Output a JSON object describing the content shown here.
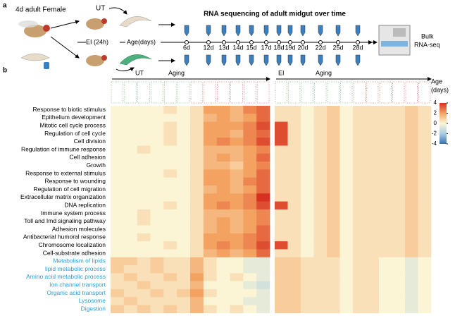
{
  "panel_a": {
    "label": "a",
    "start": "4d adult Female",
    "ut": "UT",
    "ei": "EI (24h)",
    "age": "Age(days)",
    "title": "RNA sequencing of adult midgut over time",
    "timepoints": [
      "6d",
      "12d",
      "13d",
      "14d",
      "15d",
      "17d",
      "18d",
      "19d",
      "20d",
      "22d",
      "25d",
      "28d"
    ],
    "bulk": [
      "Bulk",
      "RNA-seq"
    ]
  },
  "panel_b": {
    "label": "b",
    "age_label": [
      "Age",
      "(days)"
    ],
    "terms": [
      "Response to biotic stimulus",
      "Epithelium development",
      "Mitotic cell cycle process",
      "Regulation of cell cycle",
      "Cell division",
      "Regulation of immune response",
      "Cell adhesion",
      "Growth",
      "Response to external stimulus",
      "Response to wounding",
      "Regulation of cell migration",
      "Extracellular matrix organization",
      "DNA replication",
      "Immune system process",
      "Toll and Imd signaling pathway",
      "Adhesion molecules",
      "Antibacterial humoral response",
      "Chromosome localization",
      "Cell-substrate adhesion"
    ],
    "metabolic_terms": [
      "Metabolism of lipids",
      "lipid metabolic process",
      "Amino acid metabolic process",
      "Ion channel transport",
      "Organic acid transport",
      "Lysosome",
      "Digestion"
    ],
    "colorbar_ticks": [
      4,
      2,
      0,
      -2,
      -4
    ],
    "heatmaps": [
      {
        "name": "UT",
        "arrow": "Aging",
        "values": [
          [
            0,
            0,
            0,
            0,
            0.5,
            0,
            0.5,
            2,
            2,
            1.5,
            2.5,
            3
          ],
          [
            0,
            0,
            0,
            0,
            0,
            0,
            0.5,
            1.5,
            2,
            1.5,
            2,
            3
          ],
          [
            0,
            0,
            0,
            0,
            0.5,
            0,
            0.5,
            2,
            2,
            2,
            2.5,
            3.5
          ],
          [
            0,
            0,
            0,
            0,
            0.5,
            0,
            0.5,
            2,
            2,
            1.5,
            2.5,
            3
          ],
          [
            0,
            0,
            0,
            0,
            0.5,
            0,
            0.5,
            2,
            2.5,
            2,
            2.5,
            3.5
          ],
          [
            0,
            0,
            0.5,
            0,
            0,
            0,
            0.5,
            1.5,
            1.5,
            1.5,
            2,
            2.5
          ],
          [
            0,
            0,
            0,
            0,
            0,
            0,
            0.5,
            1.5,
            2,
            1.5,
            2,
            3
          ],
          [
            0,
            0,
            0,
            0,
            0,
            0,
            0.5,
            1.5,
            1.5,
            1,
            2,
            2.5
          ],
          [
            0,
            0,
            0,
            0,
            0.5,
            0,
            0.5,
            2,
            2,
            1.5,
            2,
            3
          ],
          [
            0,
            0,
            0,
            0,
            0,
            0,
            0.5,
            2,
            2,
            1.5,
            2.5,
            3
          ],
          [
            0,
            0,
            0,
            0,
            0,
            0,
            0.5,
            1.5,
            2,
            1.5,
            2,
            3
          ],
          [
            0,
            0,
            0,
            0,
            0,
            0,
            0.5,
            2,
            2,
            2,
            2.5,
            4
          ],
          [
            0,
            0,
            0,
            0,
            0.5,
            0,
            0.5,
            2,
            2.5,
            2,
            2.5,
            3.5
          ],
          [
            0,
            0,
            0.5,
            0,
            0,
            0,
            0.5,
            1.5,
            1.5,
            1.5,
            2,
            2.5
          ],
          [
            0,
            0,
            0.5,
            0,
            0,
            0,
            0.5,
            1.5,
            2,
            1.5,
            2,
            2.5
          ],
          [
            0,
            0,
            0,
            0,
            0,
            0,
            0.5,
            1.5,
            2,
            1.5,
            2,
            3
          ],
          [
            0,
            0,
            0.5,
            0,
            0,
            0,
            0.5,
            2,
            2,
            2,
            2.5,
            3
          ],
          [
            0,
            0,
            0,
            0,
            0.5,
            0,
            0.5,
            2,
            2.5,
            2,
            2.5,
            3.5
          ],
          [
            0,
            0,
            0,
            0,
            0,
            0,
            0.5,
            1.5,
            2,
            1.5,
            2,
            3
          ],
          [
            1,
            1,
            0.5,
            1,
            0.5,
            0.5,
            1.5,
            0.5,
            0,
            0,
            -0.5,
            -0.5
          ],
          [
            1,
            0.5,
            0.5,
            1,
            0.5,
            0.5,
            1.5,
            0.5,
            0,
            0,
            -0.5,
            -0.5
          ],
          [
            0.5,
            1,
            0.5,
            0.5,
            1,
            0.5,
            2,
            0.5,
            0,
            0.5,
            0,
            -0.5
          ],
          [
            0.5,
            0.5,
            1,
            0.5,
            0.5,
            0.5,
            1.5,
            0,
            0,
            0,
            -0.5,
            -1
          ],
          [
            1,
            0.5,
            0.5,
            1,
            0.5,
            1,
            2,
            0.5,
            0,
            0,
            0,
            -0.5
          ],
          [
            0.5,
            1,
            0.5,
            0.5,
            0.5,
            0.5,
            1.5,
            0,
            0,
            0,
            -0.5,
            -0.5
          ],
          [
            1,
            0.5,
            1,
            0.5,
            1,
            0.5,
            1.5,
            0.5,
            0,
            0.5,
            0,
            -0.5
          ]
        ]
      },
      {
        "name": "EI",
        "arrow": "Aging",
        "values": [
          [
            0.5,
            0.5,
            0,
            0.5,
            1,
            0,
            0.5,
            0.5,
            0.5,
            0.5,
            1,
            0.5
          ],
          [
            0.5,
            0.5,
            0,
            0.5,
            1,
            0,
            0.5,
            0.5,
            0.5,
            0.5,
            1,
            0.5
          ],
          [
            3.5,
            0.5,
            0,
            0.5,
            1,
            0,
            0.5,
            0.5,
            0.5,
            0.5,
            1,
            0.5
          ],
          [
            3.5,
            0.5,
            0,
            0.5,
            1,
            0,
            0.5,
            0.5,
            0.5,
            0.5,
            1,
            0.5
          ],
          [
            3.5,
            0.5,
            0,
            0.5,
            1,
            0,
            0.5,
            0.5,
            0.5,
            0.5,
            1,
            0.5
          ],
          [
            0.5,
            0.5,
            0,
            0.5,
            1,
            0,
            0.5,
            0.5,
            0.5,
            0.5,
            1,
            0.5
          ],
          [
            0.5,
            0.5,
            0,
            0.5,
            1,
            0,
            0.5,
            0.5,
            0.5,
            0.5,
            1,
            0.5
          ],
          [
            0.5,
            0.5,
            0,
            0.5,
            1,
            0,
            0.5,
            0.5,
            0.5,
            0.5,
            1,
            0.5
          ],
          [
            0.5,
            0.5,
            0,
            0.5,
            1,
            0,
            0.5,
            0.5,
            0.5,
            0.5,
            1,
            0.5
          ],
          [
            0.5,
            0.5,
            0,
            0.5,
            1,
            0,
            0.5,
            0.5,
            0.5,
            0.5,
            1,
            0.5
          ],
          [
            0.5,
            0.5,
            0,
            0.5,
            1,
            0,
            0.5,
            0.5,
            0.5,
            0.5,
            1,
            0.5
          ],
          [
            0.5,
            0.5,
            0,
            0.5,
            1,
            0,
            0.5,
            0.5,
            0.5,
            0.5,
            1,
            0.5
          ],
          [
            3.5,
            0.5,
            0,
            0.5,
            1,
            0,
            0.5,
            0.5,
            0.5,
            0.5,
            1,
            0.5
          ],
          [
            0.5,
            0.5,
            0,
            0.5,
            1,
            0,
            0.5,
            0.5,
            0.5,
            0.5,
            1,
            0.5
          ],
          [
            0.5,
            0.5,
            0,
            0.5,
            1,
            0,
            0.5,
            0.5,
            0.5,
            0.5,
            1,
            0.5
          ],
          [
            0.5,
            0.5,
            0,
            0.5,
            1,
            0,
            0.5,
            0.5,
            0.5,
            0.5,
            1,
            0.5
          ],
          [
            0.5,
            0.5,
            0,
            0.5,
            1,
            0,
            0.5,
            0.5,
            0.5,
            0.5,
            1,
            0.5
          ],
          [
            3.5,
            0.5,
            0,
            0.5,
            1,
            0,
            0.5,
            0.5,
            0.5,
            0.5,
            1,
            0.5
          ],
          [
            0.5,
            0.5,
            0,
            0.5,
            1,
            0,
            0.5,
            0.5,
            0.5,
            0.5,
            1,
            0.5
          ],
          [
            1,
            1,
            0.5,
            0.5,
            0.5,
            0,
            0.5,
            0.5,
            0,
            0,
            -0.5,
            0
          ],
          [
            1,
            1,
            0.5,
            0.5,
            0.5,
            0,
            0.5,
            0.5,
            0,
            0,
            -0.5,
            0
          ],
          [
            1,
            1,
            0.5,
            0.5,
            0.5,
            0,
            0.5,
            0.5,
            0,
            0,
            -0.5,
            0
          ],
          [
            1,
            1,
            0.5,
            0.5,
            0.5,
            0,
            0.5,
            0.5,
            0,
            0,
            -0.5,
            0
          ],
          [
            1,
            1,
            0.5,
            0.5,
            0.5,
            0,
            0.5,
            0.5,
            0,
            0,
            -0.5,
            0
          ],
          [
            1,
            1,
            0.5,
            0.5,
            0.5,
            0,
            0.5,
            0.5,
            0,
            0,
            -0.5,
            0
          ],
          [
            1,
            1,
            0.5,
            0.5,
            0.5,
            0,
            0.5,
            0.5,
            0,
            0,
            -0.5,
            0
          ]
        ]
      }
    ]
  }
}
